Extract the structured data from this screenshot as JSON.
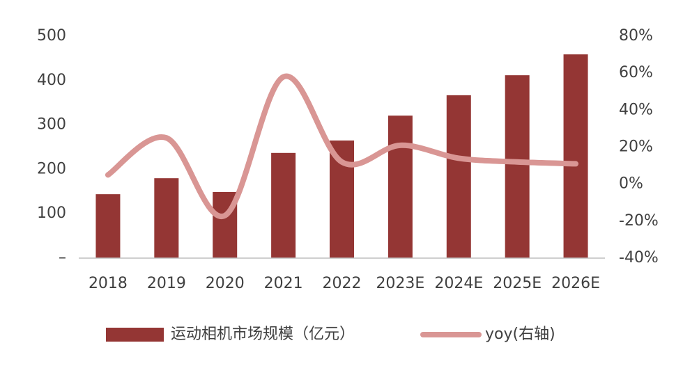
{
  "chart_data": {
    "type": "bar",
    "categories": [
      "2018",
      "2019",
      "2020",
      "2021",
      "2022",
      "2023E",
      "2024E",
      "2025E",
      "2026E"
    ],
    "series": [
      {
        "name": "运动相机市场规模（亿元）",
        "type": "bar",
        "color": "#943634",
        "values": [
          144,
          180,
          149,
          237,
          265,
          321,
          367,
          412,
          459
        ]
      },
      {
        "name": "yoy(右轴)",
        "type": "line",
        "axis": "y2",
        "color": "#d99694",
        "values": [
          5,
          25,
          -17,
          58,
          12,
          21,
          14,
          12,
          11
        ]
      }
    ],
    "ylim": [
      0,
      500
    ],
    "yticks": [
      {
        "value": 0,
        "label": "–"
      },
      100,
      200,
      300,
      400,
      500
    ],
    "y2lim": [
      -40,
      80
    ],
    "y2ticks": [
      {
        "value": -40,
        "label": "-40%"
      },
      {
        "value": -20,
        "label": "-20%"
      },
      {
        "value": 0,
        "label": "0%"
      },
      {
        "value": 20,
        "label": "20%"
      },
      {
        "value": 40,
        "label": "40%"
      },
      {
        "value": 60,
        "label": "60%"
      },
      {
        "value": 80,
        "label": "80%"
      }
    ],
    "legend": "bottom"
  }
}
